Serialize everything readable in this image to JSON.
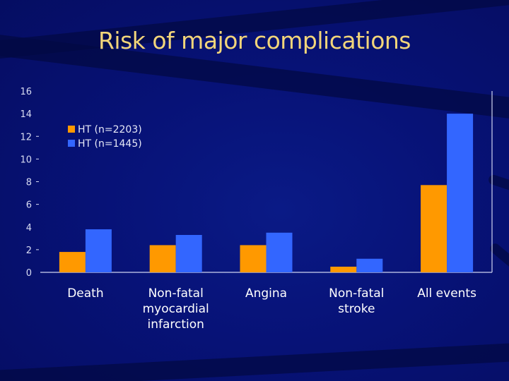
{
  "slide": {
    "title": "Risk of major complications"
  },
  "chart_data": {
    "type": "bar",
    "title": "Risk of major complications",
    "xlabel": "",
    "ylabel": "",
    "ylim": [
      0,
      16
    ],
    "y_ticks": [
      "0",
      "2",
      "4",
      "6",
      "8",
      "10",
      "12",
      "14",
      "16"
    ],
    "grid": false,
    "legend_position": "top-left",
    "categories": [
      [
        "Death"
      ],
      [
        "Non-fatal",
        "myocardial",
        "infarction"
      ],
      [
        "Angina"
      ],
      [
        "Non-fatal",
        "stroke"
      ],
      [
        "All events"
      ]
    ],
    "series": [
      {
        "name": "HT (n=2203)",
        "color": "#ff9900",
        "values": [
          1.8,
          2.4,
          2.4,
          0.5,
          7.7
        ]
      },
      {
        "name": "HT (n=1445)",
        "color": "#3366ff",
        "values": [
          3.8,
          3.3,
          3.5,
          1.2,
          14.0
        ]
      }
    ]
  }
}
